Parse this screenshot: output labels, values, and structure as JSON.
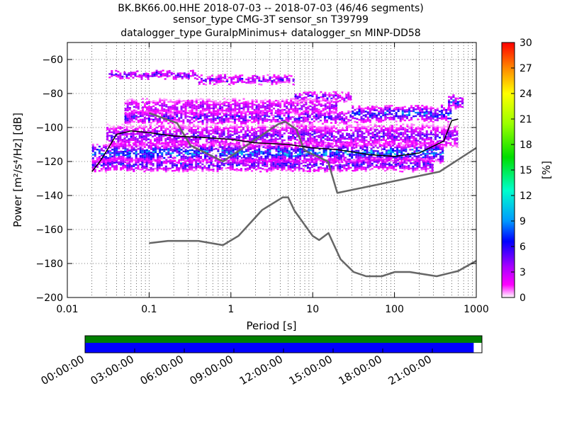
{
  "chart_data": [
    {
      "type": "heatmap",
      "title_lines": [
        "BK.BK66.00.HHE   2018-07-03 -- 2018-07-03  (46/46 segments)",
        "sensor_type CMG-3T sensor_sn T39799",
        "datalogger_type GuralpMinimus+ datalogger_sn MINP-DD58"
      ],
      "xlabel": "Period [s]",
      "ylabel": "Power [m²/s⁴/Hz] [dB]",
      "x_scale": "log",
      "xlim": [
        0.01,
        1000
      ],
      "ylim": [
        -200,
        -50
      ],
      "x_ticks": [
        0.01,
        0.1,
        1,
        10,
        100,
        1000
      ],
      "x_tick_labels": [
        "0.01",
        "0.1",
        "1",
        "10",
        "100",
        "1000"
      ],
      "y_ticks": [
        -200,
        -180,
        -160,
        -140,
        -120,
        -100,
        -80,
        -60
      ],
      "y_tick_labels": [
        "−200",
        "−180",
        "−160",
        "−140",
        "−120",
        "−100",
        "−80",
        "−60"
      ],
      "grid": true,
      "colorbar": {
        "label": "[%]",
        "range": [
          0,
          30
        ],
        "ticks": [
          0,
          3,
          6,
          9,
          12,
          15,
          18,
          21,
          24,
          27,
          30
        ],
        "tick_labels": [
          "0",
          "3",
          "6",
          "9",
          "12",
          "15",
          "18",
          "21",
          "24",
          "27",
          "30"
        ],
        "colormap": "pqlx"
      },
      "series": [
        {
          "name": "",
          "role": "new-high-noise-model",
          "color": "#666666",
          "x": [
            0.1,
            0.22,
            0.32,
            0.8,
            3.8,
            4.6,
            6.3,
            7.9,
            15.4,
            20,
            354.8,
            1000
          ],
          "y": [
            -91.5,
            -97.4,
            -110.5,
            -120,
            -98,
            -96.5,
            -101,
            -113.5,
            -120,
            -138.5,
            -126,
            -112
          ]
        },
        {
          "name": "",
          "role": "new-low-noise-model",
          "color": "#666666",
          "x": [
            0.1,
            0.17,
            0.4,
            0.8,
            1.24,
            2.4,
            4.3,
            5,
            6,
            10,
            12,
            15.6,
            21.9,
            31.6,
            45,
            70,
            101,
            154,
            328,
            600,
            1000
          ],
          "y": [
            -168,
            -166.7,
            -166.7,
            -169.2,
            -163.7,
            -148.6,
            -141.1,
            -141.1,
            -149,
            -163.8,
            -166.2,
            -162.1,
            -177.5,
            -185,
            -187.5,
            -187.5,
            -185,
            -185,
            -187.5,
            -184.4,
            -178.4
          ]
        },
        {
          "name": "",
          "role": "station-mode",
          "color": "#000000",
          "x": [
            0.02,
            0.025,
            0.03,
            0.04,
            0.06,
            0.1,
            0.2,
            0.5,
            1,
            2,
            5,
            10,
            20,
            50,
            100,
            200,
            400,
            500,
            600
          ],
          "y": [
            -126,
            -120,
            -114,
            -104,
            -102,
            -103,
            -105,
            -106,
            -107,
            -109,
            -110,
            -112,
            -113,
            -116,
            -117,
            -115,
            -108,
            -96,
            -95
          ]
        }
      ],
      "density_bands": [
        {
          "x0": 0.032,
          "x1": 0.4,
          "y_center": -69,
          "spread": 1.5,
          "peak_percent": 6
        },
        {
          "x0": 0.4,
          "x1": 6,
          "y_center": -72,
          "spread": 2,
          "peak_percent": 5
        },
        {
          "x0": 6,
          "x1": 30,
          "y_center": -82,
          "spread": 2,
          "peak_percent": 5
        },
        {
          "x0": 0.05,
          "x1": 20,
          "y_center": -88,
          "spread": 4,
          "peak_percent": 4
        },
        {
          "x0": 0.05,
          "x1": 30,
          "y_center": -94,
          "spread": 3,
          "peak_percent": 6
        },
        {
          "x0": 30,
          "x1": 500,
          "y_center": -92,
          "spread": 4,
          "peak_percent": 8
        },
        {
          "x0": 0.03,
          "x1": 600,
          "y_center": -105,
          "spread": 6,
          "peak_percent": 5
        },
        {
          "x0": 0.02,
          "x1": 400,
          "y_center": -115,
          "spread": 5,
          "peak_percent": 9
        },
        {
          "x0": 0.02,
          "x1": 300,
          "y_center": -122,
          "spread": 3,
          "peak_percent": 6
        },
        {
          "x0": 450,
          "x1": 700,
          "y_center": -85,
          "spread": 3,
          "peak_percent": 7
        }
      ]
    },
    {
      "type": "timeline",
      "time_ticks": [
        "00:00:00",
        "03:00:00",
        "06:00:00",
        "09:00:00",
        "12:00:00",
        "15:00:00",
        "18:00:00",
        "21:00:00"
      ],
      "time_range_hours": [
        0,
        24
      ],
      "coverage": [
        {
          "name": "available-data",
          "color": "#008000",
          "start_hour": 0,
          "end_hour": 24
        },
        {
          "name": "used-data",
          "color": "#0000ff",
          "start_hour": 0,
          "end_hour": 23.5
        }
      ]
    }
  ]
}
